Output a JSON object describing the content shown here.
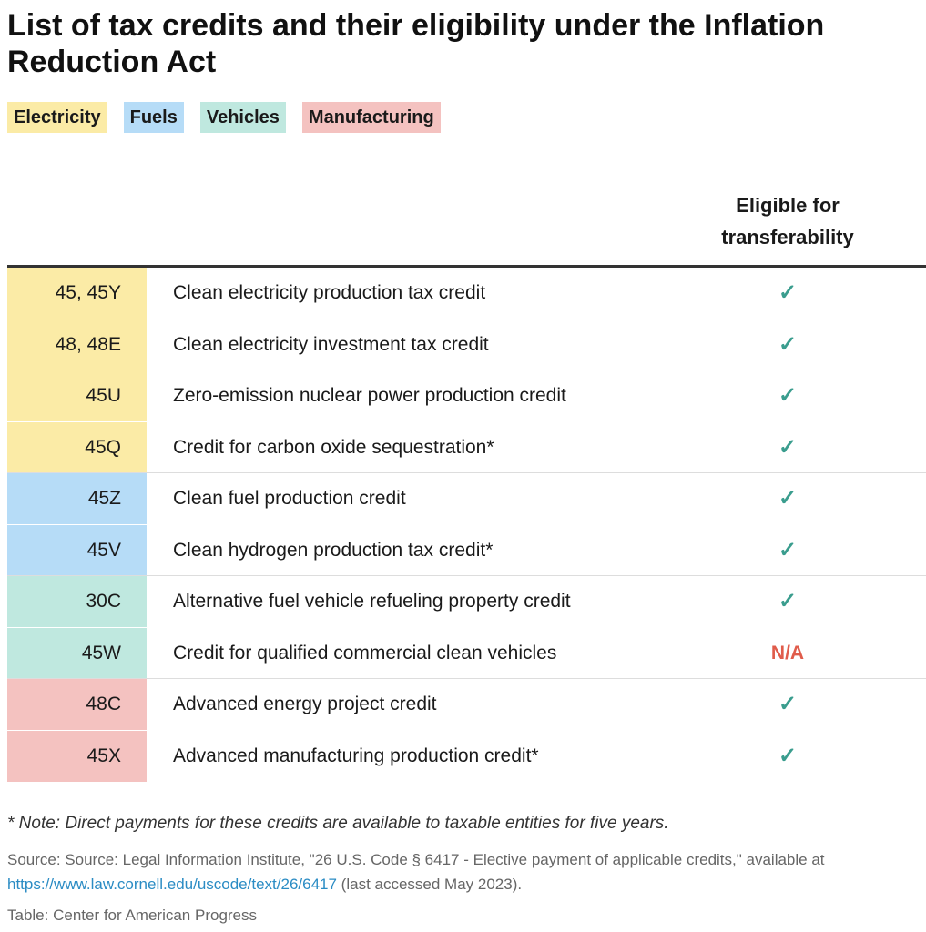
{
  "title": "List of tax credits and their eligibility under the Inflation Reduction Act",
  "legend": [
    {
      "label": "Electricity",
      "color": "#fbeba6"
    },
    {
      "label": "Fuels",
      "color": "#b6dcf7"
    },
    {
      "label": "Vehicles",
      "color": "#bfe8df"
    },
    {
      "label": "Manufacturing",
      "color": "#f4c2c0"
    }
  ],
  "column_header": "Eligible for transferability",
  "check_color": "#3a9d8e",
  "na_color": "#e05c4b",
  "chart_data": {
    "type": "table",
    "title": "List of tax credits and their eligibility under the Inflation Reduction Act",
    "columns": [
      "",
      "",
      "Eligible for transferability"
    ],
    "groups": [
      {
        "category": "Electricity",
        "color": "#fbeba6",
        "rows": [
          {
            "code": "45, 45Y",
            "credit": "Clean electricity production tax credit",
            "eligible": "✓"
          },
          {
            "code": "48, 48E",
            "credit": "Clean electricity investment tax credit",
            "eligible": "✓"
          },
          {
            "code": "45U",
            "credit": "Zero-emission nuclear power production credit",
            "eligible": "✓"
          },
          {
            "code": "45Q",
            "credit": "Credit for carbon oxide sequestration*",
            "eligible": "✓"
          }
        ]
      },
      {
        "category": "Fuels",
        "color": "#b6dcf7",
        "rows": [
          {
            "code": "45Z",
            "credit": "Clean fuel production credit",
            "eligible": "✓"
          },
          {
            "code": "45V",
            "credit": "Clean hydrogen production tax credit*",
            "eligible": "✓"
          }
        ]
      },
      {
        "category": "Vehicles",
        "color": "#bfe8df",
        "rows": [
          {
            "code": "30C",
            "credit": "Alternative fuel vehicle refueling property credit",
            "eligible": "✓"
          },
          {
            "code": "45W",
            "credit": "Credit for qualified commercial clean vehicles",
            "eligible": "N/A"
          }
        ]
      },
      {
        "category": "Manufacturing",
        "color": "#f4c2c0",
        "rows": [
          {
            "code": "48C",
            "credit": "Advanced energy project credit",
            "eligible": "✓"
          },
          {
            "code": "45X",
            "credit": "Advanced manufacturing production credit*",
            "eligible": "✓"
          }
        ]
      }
    ]
  },
  "note": "* Note: Direct payments for these credits are available to taxable entities for five years.",
  "source": {
    "text_line1": "Source: Source: Legal Information Institute, \"26 U.S. Code § 6417 - Elective payment of applicable credits,\" available at",
    "link": "https://www.law.cornell.edu/uscode/text/26/6417",
    "text_after_link": " (last accessed May 2023)."
  },
  "credit": "Table: Center for American Progress"
}
